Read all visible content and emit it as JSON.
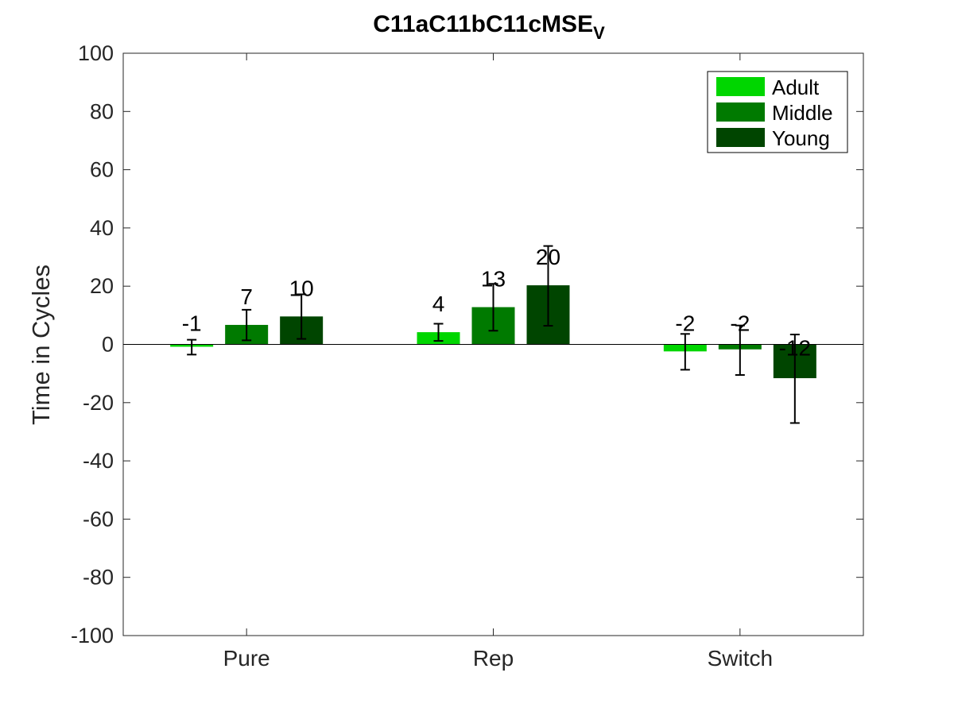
{
  "chart_data": {
    "type": "bar",
    "title": "C11aC11bC11cMSE",
    "title_subscript": "V",
    "xlabel": "",
    "ylabel": "Time in Cycles",
    "ylim": [
      -100,
      100
    ],
    "yticks": [
      -100,
      -80,
      -60,
      -40,
      -20,
      0,
      20,
      40,
      60,
      80,
      100
    ],
    "categories": [
      "Pure",
      "Rep",
      "Switch"
    ],
    "series": [
      {
        "name": "Adult",
        "color": "#00d600",
        "values": [
          -0.8,
          4.2,
          -2.4
        ],
        "err_low": [
          -3.5,
          1.2,
          -8.7
        ],
        "err_high": [
          1.6,
          7.1,
          3.6
        ],
        "labels": [
          "-1",
          "4",
          "-2"
        ]
      },
      {
        "name": "Middle",
        "color": "#007a00",
        "values": [
          6.7,
          12.8,
          -1.7
        ],
        "err_low": [
          1.4,
          4.7,
          -10.5
        ],
        "err_high": [
          11.9,
          20.8,
          6.5
        ],
        "labels": [
          "7",
          "13",
          "-2"
        ]
      },
      {
        "name": "Young",
        "color": "#004500",
        "values": [
          9.6,
          20.3,
          -11.6
        ],
        "err_low": [
          1.9,
          6.4,
          -27.0
        ],
        "err_high": [
          17.2,
          33.8,
          3.4
        ],
        "labels": [
          "10",
          "20",
          "-12"
        ]
      }
    ],
    "grid": false,
    "legend_position": "top-right"
  }
}
